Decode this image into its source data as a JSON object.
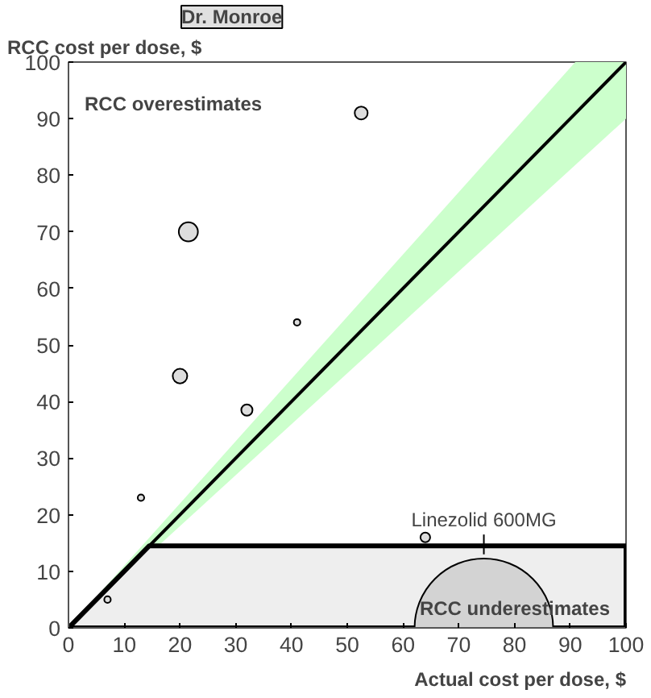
{
  "chart_data": {
    "type": "bubble",
    "ylabel": "RCC cost per dose, $",
    "xlabel": "Actual cost per dose, $",
    "subtitle": "Dr. Monroe",
    "annotations": [
      "RCC overestimates",
      "RCC underestimates",
      {
        "text": "Linezolid 600MG",
        "x": 74.5,
        "y": 13
      }
    ],
    "xlim": [
      0,
      100
    ],
    "ylim": [
      0,
      100
    ],
    "xticks": [
      0,
      10,
      20,
      30,
      40,
      50,
      60,
      70,
      80,
      90,
      100
    ],
    "yticks": [
      0,
      10,
      20,
      30,
      40,
      50,
      60,
      70,
      80,
      90,
      100
    ],
    "grid": false,
    "series": [
      {
        "type": "area",
        "color": "#eeeeee",
        "x": [
          0,
          14.5,
          100
        ],
        "values": [
          0,
          14.5,
          14.5
        ]
      },
      {
        "type": "line",
        "color": "#000000",
        "x": [
          0,
          90.9,
          100
        ],
        "values": [
          0,
          90.9,
          100
        ],
        "lower": [
          0,
          81.8,
          90
        ],
        "upper": [
          0,
          100,
          100
        ]
      },
      {
        "color": "#dddddd",
        "x": [
          7,
          13,
          20,
          21.5,
          32,
          41,
          52.5,
          64,
          74.5
        ],
        "values": [
          5,
          23,
          44.5,
          70,
          38.5,
          54,
          91,
          16,
          0
        ],
        "sizes": [
          0.0022,
          0.0022,
          0.011,
          0.019,
          0.0066,
          0.0022,
          0.0087,
          0.0049,
          1
        ],
        "colors": [
          "#dddddd",
          "#dddddd",
          "#dddddd",
          "#dddddd",
          "#dddddd",
          "#dddddd",
          "#dddddd",
          "#dddddd",
          "#d3d3d3"
        ]
      }
    ]
  }
}
